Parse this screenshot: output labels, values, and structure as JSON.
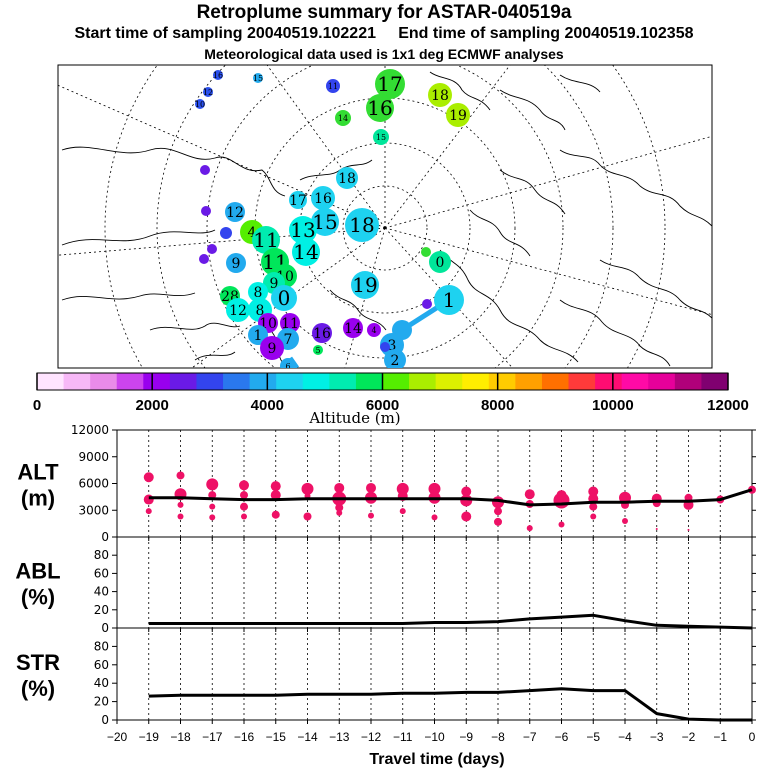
{
  "header": {
    "title": "Retroplume summary for ASTAR-040519a",
    "start_label": "Start time of sampling 20040519.102221",
    "end_label": "End time of sampling 20040519.102358",
    "met_label": "Meteorological data used is 1x1 deg ECMWF analyses"
  },
  "colorbar": {
    "label": "Altitude (m)",
    "ticks": [
      "0",
      "2000",
      "4000",
      "6000",
      "8000",
      "10000",
      "12000"
    ],
    "colors": [
      "#ffe4ff",
      "#f7b8f7",
      "#e98be9",
      "#cc44ee",
      "#9900ee",
      "#6a1ae6",
      "#3344ee",
      "#2a78ee",
      "#22aaee",
      "#1ed2f0",
      "#00f0e4",
      "#00ecb0",
      "#00e65a",
      "#55ee00",
      "#aaee00",
      "#ddf000",
      "#ffee00",
      "#ffcc00",
      "#ffa000",
      "#ff7000",
      "#ff3a3a",
      "#ff0c72",
      "#ff0aa6",
      "#e6009a",
      "#b0007a",
      "#800070"
    ]
  },
  "map_points": [
    {
      "label": "17",
      "x": 390,
      "y": 84,
      "r": 15,
      "color": "#33dd33"
    },
    {
      "label": "16",
      "x": 380,
      "y": 108,
      "r": 14,
      "color": "#33dd33"
    },
    {
      "label": "18",
      "x": 440,
      "y": 95,
      "r": 12,
      "color": "#aaee00"
    },
    {
      "label": "19",
      "x": 458,
      "y": 115,
      "r": 12,
      "color": "#aaee00"
    },
    {
      "label": "14",
      "x": 343,
      "y": 118,
      "r": 8,
      "color": "#33dd33"
    },
    {
      "label": "15",
      "x": 381,
      "y": 137,
      "r": 8,
      "color": "#00e69a"
    },
    {
      "label": "11",
      "x": 333,
      "y": 86,
      "r": 7,
      "color": "#3344ee"
    },
    {
      "label": "15",
      "x": 258,
      "y": 78,
      "r": 5,
      "color": "#22aaee"
    },
    {
      "label": "16",
      "x": 218,
      "y": 75,
      "r": 5,
      "color": "#2a50ee"
    },
    {
      "label": "12",
      "x": 208,
      "y": 92,
      "r": 5,
      "color": "#2a50ee"
    },
    {
      "label": "10",
      "x": 200,
      "y": 104,
      "r": 5,
      "color": "#2a50ee"
    },
    {
      "label": "",
      "x": 205,
      "y": 170,
      "r": 5,
      "color": "#6a1ae6"
    },
    {
      "label": "",
      "x": 206,
      "y": 211,
      "r": 5,
      "color": "#6a1ae6"
    },
    {
      "label": "12",
      "x": 235,
      "y": 212,
      "r": 10,
      "color": "#22aaee"
    },
    {
      "label": "",
      "x": 212,
      "y": 249,
      "r": 5,
      "color": "#6a1ae6"
    },
    {
      "label": "9",
      "x": 236,
      "y": 263,
      "r": 10,
      "color": "#22aaee"
    },
    {
      "label": "",
      "x": 204,
      "y": 259,
      "r": 5,
      "color": "#6a1ae6"
    },
    {
      "label": "",
      "x": 226,
      "y": 233,
      "r": 6,
      "color": "#3344ee"
    },
    {
      "label": "18",
      "x": 347,
      "y": 178,
      "r": 11,
      "color": "#1ed2f0"
    },
    {
      "label": "16",
      "x": 323,
      "y": 198,
      "r": 12,
      "color": "#1ed2f0"
    },
    {
      "label": "17",
      "x": 298,
      "y": 200,
      "r": 9,
      "color": "#1ed2f0"
    },
    {
      "label": "15",
      "x": 325,
      "y": 222,
      "r": 14,
      "color": "#1ed2f0"
    },
    {
      "label": "18",
      "x": 362,
      "y": 225,
      "r": 17,
      "color": "#1ed2f0"
    },
    {
      "label": "13",
      "x": 303,
      "y": 230,
      "r": 14,
      "color": "#00f0e4"
    },
    {
      "label": "4",
      "x": 252,
      "y": 232,
      "r": 12,
      "color": "#55ee00"
    },
    {
      "label": "11",
      "x": 266,
      "y": 240,
      "r": 14,
      "color": "#00ecb0"
    },
    {
      "label": "14",
      "x": 306,
      "y": 252,
      "r": 14,
      "color": "#00f0e4"
    },
    {
      "label": "11",
      "x": 275,
      "y": 262,
      "r": 14,
      "color": "#00e65a"
    },
    {
      "label": "10",
      "x": 285,
      "y": 276,
      "r": 12,
      "color": "#00e65a"
    },
    {
      "label": "9",
      "x": 274,
      "y": 283,
      "r": 11,
      "color": "#00ecb0"
    },
    {
      "label": "0",
      "x": 284,
      "y": 298,
      "r": 13,
      "color": "#1ed2f0"
    },
    {
      "label": "8",
      "x": 258,
      "y": 292,
      "r": 10,
      "color": "#00f0e4"
    },
    {
      "label": "28",
      "x": 230,
      "y": 296,
      "r": 10,
      "color": "#00e65a"
    },
    {
      "label": "12",
      "x": 238,
      "y": 310,
      "r": 12,
      "color": "#00f0e4"
    },
    {
      "label": "8",
      "x": 260,
      "y": 310,
      "r": 12,
      "color": "#00f0e4"
    },
    {
      "label": "10",
      "x": 268,
      "y": 323,
      "r": 10,
      "color": "#9900ee"
    },
    {
      "label": "11",
      "x": 290,
      "y": 323,
      "r": 10,
      "color": "#9900ee"
    },
    {
      "label": "1",
      "x": 258,
      "y": 335,
      "r": 10,
      "color": "#22aaee"
    },
    {
      "label": "7",
      "x": 288,
      "y": 339,
      "r": 11,
      "color": "#22aaee"
    },
    {
      "label": "9",
      "x": 272,
      "y": 348,
      "r": 12,
      "color": "#9900ee"
    },
    {
      "label": "16",
      "x": 322,
      "y": 333,
      "r": 10,
      "color": "#6a1ae6"
    },
    {
      "label": "14",
      "x": 353,
      "y": 328,
      "r": 10,
      "color": "#9900ee"
    },
    {
      "label": "4",
      "x": 374,
      "y": 330,
      "r": 7,
      "color": "#9900ee"
    },
    {
      "label": "5",
      "x": 318,
      "y": 350,
      "r": 5,
      "color": "#00e65a"
    },
    {
      "label": "6",
      "x": 288,
      "y": 366,
      "r": 8,
      "color": "#22aaee"
    },
    {
      "label": "19",
      "x": 365,
      "y": 285,
      "r": 14,
      "color": "#1ed2f0"
    },
    {
      "label": "0",
      "x": 440,
      "y": 262,
      "r": 11,
      "color": "#00e69a"
    },
    {
      "label": "",
      "x": 426,
      "y": 252,
      "r": 5,
      "color": "#33dd33"
    },
    {
      "label": "",
      "x": 427,
      "y": 304,
      "r": 5,
      "color": "#6a1ae6"
    },
    {
      "label": "1",
      "x": 449,
      "y": 300,
      "r": 15,
      "color": "#1ed2f0"
    },
    {
      "label": "",
      "x": 402,
      "y": 330,
      "r": 10,
      "color": "#22aaee"
    },
    {
      "label": "3",
      "x": 392,
      "y": 345,
      "r": 12,
      "color": "#22aaee"
    },
    {
      "label": "2",
      "x": 395,
      "y": 360,
      "r": 11,
      "color": "#22aaee"
    },
    {
      "label": "",
      "x": 385,
      "y": 347,
      "r": 5,
      "color": "#3344ee"
    }
  ],
  "chart_data": [
    {
      "type": "line",
      "title": "ALT (m)",
      "panel_label_1": "ALT",
      "panel_label_2": "(m)",
      "x": [
        -19,
        -18,
        -17,
        -16,
        -15,
        -14,
        -13,
        -12,
        -11,
        -10,
        -9,
        -8,
        -7,
        -6,
        -5,
        -4,
        -3,
        -2,
        -1,
        0
      ],
      "median": [
        4400,
        4400,
        4300,
        4200,
        4200,
        4300,
        4300,
        4300,
        4300,
        4300,
        4300,
        4100,
        3600,
        3700,
        3900,
        3900,
        4000,
        4000,
        4200,
        5300
      ],
      "ylim": [
        0,
        12000
      ],
      "yticks": [
        0,
        3000,
        6000,
        9000,
        12000
      ],
      "ytick_labels": [
        "0",
        "3000",
        "6000",
        "9000",
        "12000"
      ],
      "cluster_points": [
        {
          "x": -19,
          "y": 6700,
          "r": 5
        },
        {
          "x": -19,
          "y": 4200,
          "r": 5
        },
        {
          "x": -19,
          "y": 2900,
          "r": 3
        },
        {
          "x": -18,
          "y": 6900,
          "r": 4
        },
        {
          "x": -18,
          "y": 4800,
          "r": 6
        },
        {
          "x": -18,
          "y": 3600,
          "r": 3
        },
        {
          "x": -18,
          "y": 2300,
          "r": 3
        },
        {
          "x": -17,
          "y": 5900,
          "r": 6
        },
        {
          "x": -17,
          "y": 4700,
          "r": 4
        },
        {
          "x": -17,
          "y": 3400,
          "r": 3
        },
        {
          "x": -17,
          "y": 2200,
          "r": 3
        },
        {
          "x": -16,
          "y": 5800,
          "r": 5
        },
        {
          "x": -16,
          "y": 4700,
          "r": 4
        },
        {
          "x": -16,
          "y": 3400,
          "r": 4
        },
        {
          "x": -16,
          "y": 2300,
          "r": 3
        },
        {
          "x": -15,
          "y": 5700,
          "r": 5
        },
        {
          "x": -15,
          "y": 4700,
          "r": 5
        },
        {
          "x": -15,
          "y": 2500,
          "r": 4
        },
        {
          "x": -14,
          "y": 5400,
          "r": 6
        },
        {
          "x": -14,
          "y": 4600,
          "r": 3
        },
        {
          "x": -14,
          "y": 2300,
          "r": 4
        },
        {
          "x": -13,
          "y": 5500,
          "r": 5
        },
        {
          "x": -13,
          "y": 4300,
          "r": 7
        },
        {
          "x": -13,
          "y": 3300,
          "r": 4
        },
        {
          "x": -13,
          "y": 2700,
          "r": 3
        },
        {
          "x": -12,
          "y": 5500,
          "r": 5
        },
        {
          "x": -12,
          "y": 4400,
          "r": 6
        },
        {
          "x": -12,
          "y": 2400,
          "r": 3
        },
        {
          "x": -11,
          "y": 5400,
          "r": 6
        },
        {
          "x": -11,
          "y": 4600,
          "r": 5
        },
        {
          "x": -11,
          "y": 2900,
          "r": 3
        },
        {
          "x": -10,
          "y": 5400,
          "r": 6
        },
        {
          "x": -10,
          "y": 4400,
          "r": 6
        },
        {
          "x": -10,
          "y": 2200,
          "r": 3
        },
        {
          "x": -9,
          "y": 5100,
          "r": 5
        },
        {
          "x": -9,
          "y": 4100,
          "r": 6
        },
        {
          "x": -9,
          "y": 2300,
          "r": 5
        },
        {
          "x": -8,
          "y": 3900,
          "r": 6
        },
        {
          "x": -8,
          "y": 2900,
          "r": 4
        },
        {
          "x": -8,
          "y": 1700,
          "r": 4
        },
        {
          "x": -7,
          "y": 4800,
          "r": 5
        },
        {
          "x": -7,
          "y": 3700,
          "r": 4
        },
        {
          "x": -7,
          "y": 1000,
          "r": 3
        },
        {
          "x": -6,
          "y": 4100,
          "r": 8
        },
        {
          "x": -6,
          "y": 4700,
          "r": 5
        },
        {
          "x": -6,
          "y": 1400,
          "r": 3
        },
        {
          "x": -5,
          "y": 5100,
          "r": 5
        },
        {
          "x": -5,
          "y": 4300,
          "r": 5
        },
        {
          "x": -5,
          "y": 3400,
          "r": 4
        },
        {
          "x": -5,
          "y": 2300,
          "r": 3
        },
        {
          "x": -4,
          "y": 4400,
          "r": 6
        },
        {
          "x": -4,
          "y": 3600,
          "r": 4
        },
        {
          "x": -4,
          "y": 1800,
          "r": 3
        },
        {
          "x": -3,
          "y": 4300,
          "r": 5
        },
        {
          "x": -3,
          "y": 3800,
          "r": 4
        },
        {
          "x": -3,
          "y": 900,
          "r": 1
        },
        {
          "x": -2,
          "y": 4400,
          "r": 4
        },
        {
          "x": -2,
          "y": 3600,
          "r": 5
        },
        {
          "x": -2,
          "y": 800,
          "r": 1
        },
        {
          "x": -1,
          "y": 4200,
          "r": 4
        },
        {
          "x": 0,
          "y": 5300,
          "r": 4
        }
      ]
    },
    {
      "type": "line",
      "title": "ABL (%)",
      "panel_label_1": "ABL",
      "panel_label_2": "(%)",
      "x": [
        -19,
        -18,
        -17,
        -16,
        -15,
        -14,
        -13,
        -12,
        -11,
        -10,
        -9,
        -8,
        -7,
        -6,
        -5,
        -4,
        -3,
        -2,
        -1,
        0
      ],
      "values": [
        5,
        5,
        5,
        5,
        5,
        5,
        5,
        5,
        5,
        6,
        6,
        7,
        10,
        12,
        14,
        8,
        3,
        2,
        1,
        0
      ],
      "ylim": [
        0,
        100
      ],
      "yticks": [
        0,
        20,
        40,
        60,
        80
      ],
      "ytick_labels": [
        "0",
        "20",
        "40",
        "60",
        "80"
      ]
    },
    {
      "type": "line",
      "title": "STR (%)",
      "panel_label_1": "STR",
      "panel_label_2": "(%)",
      "x": [
        -19,
        -18,
        -17,
        -16,
        -15,
        -14,
        -13,
        -12,
        -11,
        -10,
        -9,
        -8,
        -7,
        -6,
        -5,
        -4,
        -3,
        -2,
        -1,
        0
      ],
      "values": [
        26,
        27,
        27,
        27,
        27,
        28,
        28,
        28,
        29,
        29,
        30,
        30,
        32,
        34,
        32,
        32,
        7,
        1,
        0,
        0
      ],
      "ylim": [
        0,
        100
      ],
      "yticks": [
        0,
        20,
        40,
        60,
        80
      ],
      "ytick_labels": [
        "0",
        "20",
        "40",
        "60",
        "80"
      ],
      "xlabel": "Travel time (days)",
      "xtick_labels": [
        "−20",
        "−19",
        "−18",
        "−17",
        "−16",
        "−15",
        "−14",
        "−13",
        "−12",
        "−11",
        "−10",
        "−9",
        "−8",
        "−7",
        "−6",
        "−5",
        "−4",
        "−3",
        "−2",
        "−1",
        "0"
      ]
    }
  ]
}
